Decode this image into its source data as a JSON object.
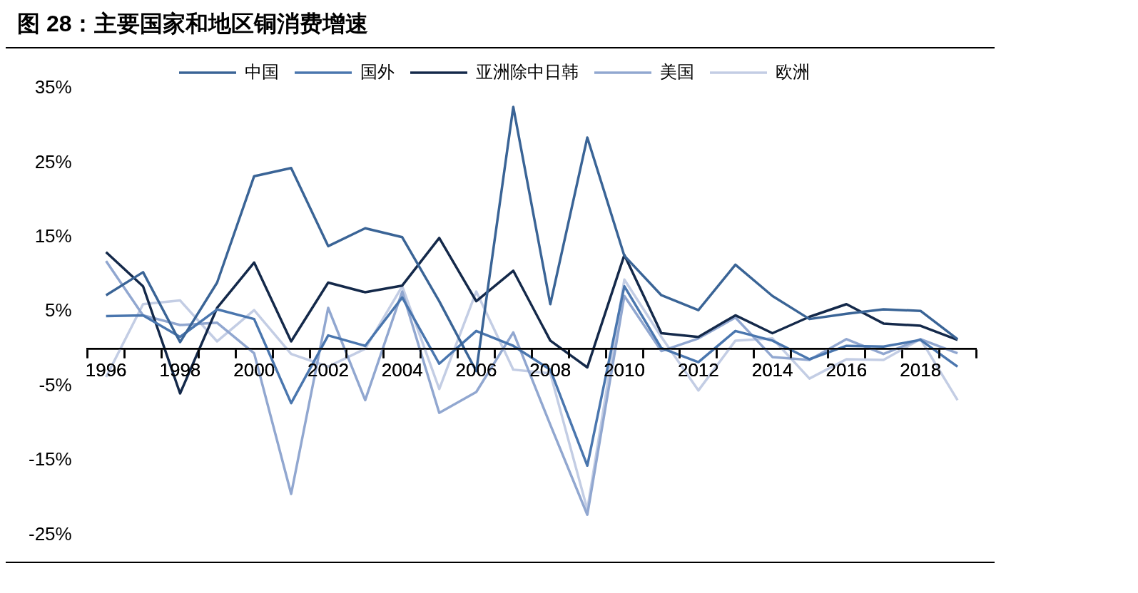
{
  "chart_data": {
    "type": "line",
    "title": "图 28：主要国家和地区铜消费增速",
    "categories": [
      "1996",
      null,
      "1998",
      null,
      "2000",
      null,
      "2002",
      null,
      "2004",
      null,
      "2006",
      null,
      "2008",
      null,
      "2010",
      null,
      "2012",
      null,
      "2014",
      null,
      "2016",
      null,
      "2018",
      null
    ],
    "series": [
      {
        "name": "中国",
        "color": "#3a6496",
        "values": [
          7.2,
          10.3,
          0.9,
          8.9,
          23.2,
          24.3,
          13.8,
          16.2,
          15.0,
          6.4,
          -3.0,
          32.5,
          6.0,
          28.4,
          12.5,
          7.2,
          5.2,
          11.3,
          7.1,
          4.0,
          4.7,
          5.3,
          5.1,
          1.3
        ]
      },
      {
        "name": "国外",
        "color": "#4a76ae",
        "values": [
          4.4,
          4.5,
          1.6,
          5.3,
          4.0,
          -7.3,
          1.8,
          0.4,
          6.9,
          -2.0,
          2.4,
          0.4,
          -2.8,
          -15.7,
          8.4,
          0.1,
          -1.8,
          2.4,
          1.1,
          -1.4,
          0.4,
          0.3,
          1.2,
          -2.4
        ]
      },
      {
        "name": "亚洲除中日韩",
        "color": "#14294a",
        "values": [
          13.0,
          8.4,
          -6.0,
          5.5,
          11.6,
          1.0,
          8.9,
          7.6,
          8.5,
          14.9,
          6.4,
          10.5,
          1.1,
          -2.5,
          12.6,
          2.1,
          1.6,
          4.5,
          2.1,
          4.3,
          6.0,
          3.4,
          3.1,
          1.2
        ]
      },
      {
        "name": "美国",
        "color": "#91a7d0",
        "values": [
          11.8,
          4.5,
          3.2,
          3.5,
          -0.6,
          -19.5,
          5.5,
          -6.9,
          7.7,
          -8.6,
          -5.8,
          2.2,
          -10.2,
          -22.3,
          7.1,
          -0.3,
          1.4,
          4.2,
          -1.1,
          -1.5,
          1.3,
          -0.7,
          1.3,
          -0.6
        ]
      },
      {
        "name": "欧洲",
        "color": "#c3cde4",
        "values": [
          -3.8,
          6.0,
          6.5,
          1.0,
          5.2,
          -0.7,
          -2.4,
          0.0,
          8.4,
          -5.4,
          7.7,
          -2.8,
          -3.3,
          -21.6,
          9.3,
          1.6,
          -5.6,
          1.1,
          1.4,
          -4.0,
          -1.4,
          -1.5,
          1.3,
          -6.9
        ]
      }
    ],
    "ylim": [
      -25,
      35
    ],
    "yticks": [
      {
        "value": -25,
        "label": "-25%"
      },
      {
        "value": -15,
        "label": "-15%"
      },
      {
        "value": -5,
        "label": "-5%"
      },
      {
        "value": 5,
        "label": "5%"
      },
      {
        "value": 15,
        "label": "15%"
      },
      {
        "value": 25,
        "label": "25%"
      },
      {
        "value": 35,
        "label": "35%"
      }
    ],
    "grid": false,
    "legend": "top",
    "marker": "none",
    "line_style": "solid"
  }
}
